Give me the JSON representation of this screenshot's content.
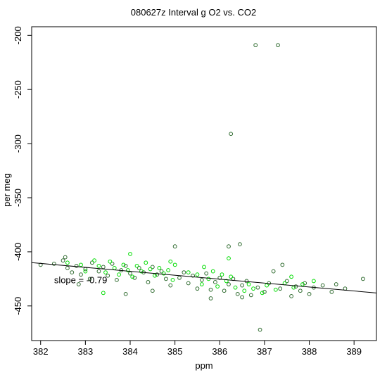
{
  "chart_data": {
    "type": "scatter",
    "title": "080627z   Interval g O2 vs. CO2",
    "xlabel": "ppm",
    "ylabel": "per meg",
    "xlim": [
      381.8,
      389.5
    ],
    "ylim": [
      -482,
      -192
    ],
    "x_ticks": [
      382,
      383,
      384,
      385,
      386,
      387,
      388,
      389
    ],
    "y_ticks": [
      -200,
      -250,
      -300,
      -350,
      -400,
      -450
    ],
    "annotation": "slope = -0.79",
    "annotation_position": [
      382.3,
      -429
    ],
    "fit_line": {
      "slope": -0.79,
      "points": [
        [
          381.8,
          -410
        ],
        [
          389.5,
          -438
        ]
      ]
    },
    "grid": false,
    "series": [
      {
        "marker": "open-circle",
        "color": "#2f6b2f",
        "points": [
          [
            382.0,
            -412
          ],
          [
            382.3,
            -411
          ],
          [
            382.5,
            -408
          ],
          [
            382.55,
            -405
          ],
          [
            382.6,
            -415
          ],
          [
            382.7,
            -419
          ],
          [
            382.8,
            -413
          ],
          [
            382.9,
            -421
          ],
          [
            383.0,
            -416
          ],
          [
            383.1,
            -425
          ],
          [
            383.15,
            -410
          ],
          [
            383.3,
            -418
          ],
          [
            383.4,
            -414
          ],
          [
            383.5,
            -422
          ],
          [
            383.6,
            -411
          ],
          [
            383.7,
            -426
          ],
          [
            383.8,
            -417
          ],
          [
            383.9,
            -413
          ],
          [
            384.0,
            -420
          ],
          [
            384.1,
            -424
          ],
          [
            384.2,
            -415
          ],
          [
            384.3,
            -419
          ],
          [
            384.4,
            -428
          ],
          [
            384.5,
            -414
          ],
          [
            384.6,
            -421
          ],
          [
            384.7,
            -418
          ],
          [
            384.8,
            -425
          ],
          [
            384.9,
            -431
          ],
          [
            385.0,
            -395
          ],
          [
            385.1,
            -424
          ],
          [
            385.2,
            -419
          ],
          [
            385.3,
            -429
          ],
          [
            385.4,
            -422
          ],
          [
            385.5,
            -434
          ],
          [
            385.6,
            -426
          ],
          [
            385.7,
            -420
          ],
          [
            385.8,
            -435
          ],
          [
            385.9,
            -428
          ],
          [
            386.0,
            -424
          ],
          [
            386.1,
            -436
          ],
          [
            386.2,
            -430
          ],
          [
            386.25,
            -291
          ],
          [
            386.3,
            -425
          ],
          [
            386.4,
            -439
          ],
          [
            386.45,
            -393
          ],
          [
            386.5,
            -431
          ],
          [
            386.6,
            -427
          ],
          [
            386.7,
            -440
          ],
          [
            386.8,
            -209
          ],
          [
            386.85,
            -433
          ],
          [
            386.9,
            -472
          ],
          [
            387.0,
            -437
          ],
          [
            387.1,
            -429
          ],
          [
            387.2,
            -418
          ],
          [
            387.3,
            -209
          ],
          [
            387.35,
            -434
          ],
          [
            387.5,
            -427
          ],
          [
            387.6,
            -441
          ],
          [
            387.7,
            -432
          ],
          [
            387.8,
            -436
          ],
          [
            387.9,
            -429
          ],
          [
            388.0,
            -439
          ],
          [
            388.1,
            -433
          ],
          [
            388.3,
            -431
          ],
          [
            388.5,
            -437
          ],
          [
            388.6,
            -430
          ],
          [
            388.8,
            -434
          ],
          [
            389.2,
            -425
          ],
          [
            383.9,
            -439
          ],
          [
            384.5,
            -436
          ],
          [
            385.8,
            -443
          ],
          [
            386.2,
            -395
          ],
          [
            386.5,
            -442
          ],
          [
            387.4,
            -412
          ],
          [
            382.85,
            -430
          ]
        ]
      },
      {
        "marker": "open-circle",
        "color": "#00dd00",
        "points": [
          [
            382.9,
            -412
          ],
          [
            383.0,
            -418
          ],
          [
            383.2,
            -408
          ],
          [
            383.3,
            -413
          ],
          [
            383.45,
            -419
          ],
          [
            383.55,
            -409
          ],
          [
            383.65,
            -415
          ],
          [
            383.75,
            -421
          ],
          [
            383.85,
            -412
          ],
          [
            383.95,
            -417
          ],
          [
            384.05,
            -423
          ],
          [
            384.15,
            -413
          ],
          [
            384.25,
            -418
          ],
          [
            384.35,
            -410
          ],
          [
            384.45,
            -416
          ],
          [
            384.55,
            -422
          ],
          [
            384.65,
            -415
          ],
          [
            384.75,
            -420
          ],
          [
            384.85,
            -417
          ],
          [
            384.95,
            -426
          ],
          [
            385.3,
            -419
          ],
          [
            385.5,
            -421
          ],
          [
            385.6,
            -430
          ],
          [
            385.65,
            -414
          ],
          [
            385.75,
            -425
          ],
          [
            385.85,
            -418
          ],
          [
            385.95,
            -432
          ],
          [
            386.05,
            -421
          ],
          [
            386.15,
            -427
          ],
          [
            386.25,
            -423
          ],
          [
            386.35,
            -433
          ],
          [
            386.55,
            -436
          ],
          [
            386.65,
            -430
          ],
          [
            386.75,
            -434
          ],
          [
            386.95,
            -438
          ],
          [
            387.05,
            -431
          ],
          [
            387.25,
            -435
          ],
          [
            387.45,
            -429
          ],
          [
            387.65,
            -433
          ],
          [
            387.85,
            -430
          ],
          [
            388.1,
            -427
          ],
          [
            384.0,
            -402
          ],
          [
            383.4,
            -438
          ],
          [
            386.2,
            -406
          ],
          [
            385.0,
            -412
          ],
          [
            387.6,
            -423
          ],
          [
            382.6,
            -410
          ],
          [
            384.9,
            -409
          ]
        ]
      }
    ]
  }
}
